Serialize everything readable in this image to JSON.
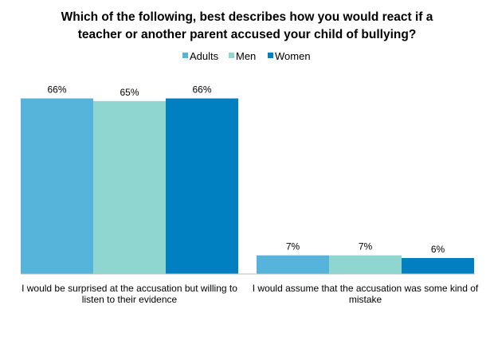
{
  "chart_data": {
    "type": "bar",
    "title_lines": [
      "Which of the following, best describes how you would react if a",
      "teacher or another parent accused your child of bullying?"
    ],
    "categories": [
      {
        "label_lines": [
          "I would be surprised at the accusation but willing to",
          "listen to their evidence"
        ]
      },
      {
        "label_lines": [
          "I would assume that the accusation was some kind of",
          "mistake"
        ]
      }
    ],
    "series": [
      {
        "name": "Adults",
        "color": "#56b3d9",
        "values": [
          66,
          7
        ],
        "labels": [
          "66%",
          "7%"
        ]
      },
      {
        "name": "Men",
        "color": "#8ed6cf",
        "values": [
          65,
          7
        ],
        "labels": [
          "65%",
          "7%"
        ]
      },
      {
        "name": "Women",
        "color": "#0080c0",
        "values": [
          66,
          6
        ],
        "labels": [
          "66%",
          "6%"
        ]
      }
    ],
    "ylim": [
      0,
      100
    ],
    "grid": false,
    "legend_position": "top"
  }
}
